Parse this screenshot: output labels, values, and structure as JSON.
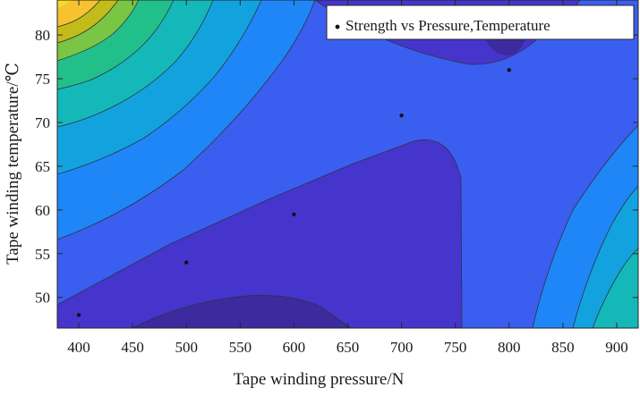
{
  "chart_data": {
    "type": "contour",
    "xlabel": "Tape winding pressure/N",
    "ylabel": "Tape winding temperature/℃",
    "xlim": [
      380,
      920
    ],
    "ylim": [
      46.5,
      84
    ],
    "xticks": [
      400,
      450,
      500,
      550,
      600,
      650,
      700,
      750,
      800,
      850,
      900
    ],
    "yticks": [
      50,
      55,
      60,
      65,
      70,
      75,
      80
    ],
    "grid": false,
    "legend": {
      "position": "top-right",
      "entries": [
        "Strength vs Pressure,Temperature"
      ]
    },
    "series": [
      {
        "name": "Strength vs Pressure,Temperature",
        "type": "scatter",
        "points": [
          {
            "x": 400,
            "y": 48
          },
          {
            "x": 500,
            "y": 54
          },
          {
            "x": 600,
            "y": 59.5
          },
          {
            "x": 700,
            "y": 70.8
          },
          {
            "x": 800,
            "y": 76
          }
        ]
      }
    ],
    "colors": {
      "level_colors": [
        "#3c2a9e",
        "#4535cc",
        "#3a5ef0",
        "#1f86f7",
        "#12a3df",
        "#15b8b8",
        "#21c08a",
        "#79c544",
        "#c2bc1a",
        "#f6c230",
        "#f5d92b",
        "#f9fb0e"
      ],
      "contour_line": "#2f3340",
      "marker": "#111111",
      "axis": "#262626"
    }
  }
}
